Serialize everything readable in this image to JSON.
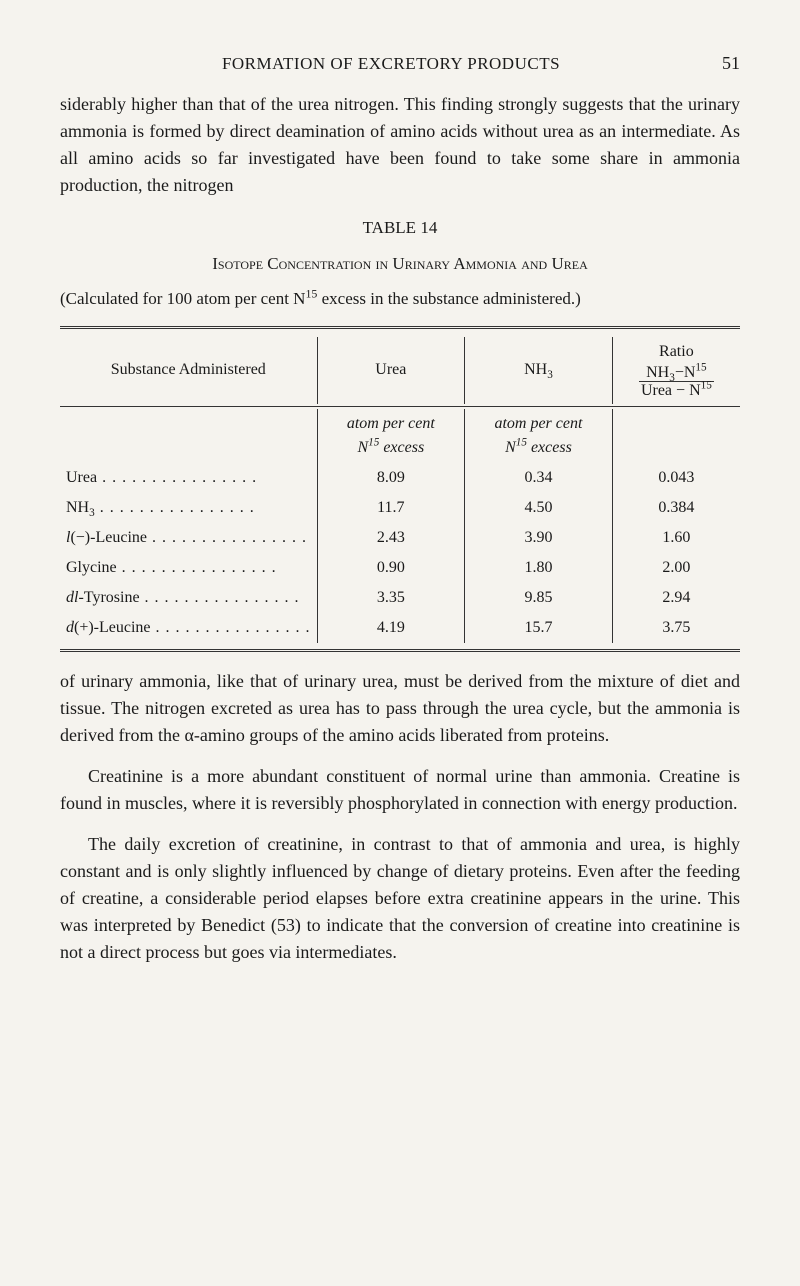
{
  "page_number": "51",
  "running_head": "FORMATION OF EXCRETORY PRODUCTS",
  "para1": "siderably higher than that of the urea nitrogen. This finding strongly suggests that the urinary ammonia is formed by direct deamination of amino acids without urea as an intermediate. As all amino acids so far investigated have been found to take some share in ammonia production, the nitrogen",
  "table": {
    "label": "TABLE 14",
    "title": "Isotope Concentration in Urinary Ammonia and Urea",
    "note_prefix": "(Calculated for 100 atom per cent N",
    "note_sup": "15",
    "note_suffix": " excess in the substance administered.)",
    "headers": {
      "substance": "Substance Administered",
      "urea": "Urea",
      "nh3": "NH",
      "nh3_sub": "3",
      "ratio_label": "Ratio",
      "ratio_top_a": "NH",
      "ratio_top_sub": "3",
      "ratio_dash": "−",
      "ratio_top_b": "N",
      "ratio_top_sup": "15",
      "ratio_bot_a": "Urea",
      "ratio_bot_b": "N",
      "ratio_bot_sup": "15"
    },
    "units": {
      "col2_a": "atom per cent",
      "col2_b_pre": "N",
      "col2_b_sup": "15",
      "col2_b_post": " excess",
      "col3_a": "atom per cent",
      "col3_b_pre": "N",
      "col3_b_sup": "15",
      "col3_b_post": " excess"
    },
    "rows": [
      {
        "substance_html": "Urea",
        "urea": "8.09",
        "nh3": "0.34",
        "ratio": "0.043"
      },
      {
        "substance_html": "NH<sub>3</sub>",
        "urea": "11.7",
        "nh3": "4.50",
        "ratio": "0.384"
      },
      {
        "substance_html": "<i>l</i>(−)-Leucine",
        "urea": "2.43",
        "nh3": "3.90",
        "ratio": "1.60"
      },
      {
        "substance_html": "Glycine",
        "urea": "0.90",
        "nh3": "1.80",
        "ratio": "2.00"
      },
      {
        "substance_html": "<i>dl</i>-Tyrosine",
        "urea": "3.35",
        "nh3": "9.85",
        "ratio": "2.94"
      },
      {
        "substance_html": "<i>d</i>(+)-Leucine",
        "urea": "4.19",
        "nh3": "15.7",
        "ratio": "3.75"
      }
    ],
    "styling": {
      "border_color": "#333333",
      "background": "#f5f3ee",
      "header_fontsize": 16,
      "body_fontsize": 16,
      "double_rule_width": 3,
      "col_alignment": [
        "left",
        "center",
        "center",
        "center"
      ],
      "col_widths_pct": [
        24,
        28,
        28,
        20
      ]
    }
  },
  "para2": "of urinary ammonia, like that of urinary urea, must be derived from the mixture of diet and tissue. The nitrogen excreted as urea has to pass through the urea cycle, but the ammonia is derived from the α-amino groups of the amino acids liberated from proteins.",
  "para3": "Creatinine is a more abundant constituent of normal urine than ammonia. Creatine is found in muscles, where it is reversibly phosphorylated in connection with energy production.",
  "para4": "The daily excretion of creatinine, in contrast to that of ammonia and urea, is highly constant and is only slightly influenced by change of dietary proteins. Even after the feeding of creatine, a considerable period elapses before extra creatinine appears in the urine. This was interpreted by Benedict (53) to indicate that the conversion of creatine into creatinine is not a direct process but goes via intermediates."
}
